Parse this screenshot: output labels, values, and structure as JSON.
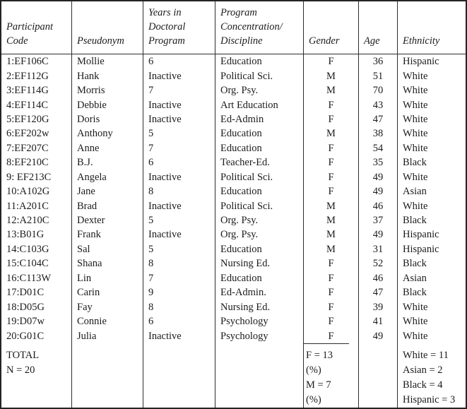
{
  "table": {
    "columns": [
      {
        "key": "participant-code",
        "label": "Participant\nCode"
      },
      {
        "key": "pseudonym",
        "label": "Pseudonym"
      },
      {
        "key": "years-in-doctoral-program",
        "label": "Years in\nDoctoral\nProgram"
      },
      {
        "key": "program-concentration",
        "label": "Program\nConcentration/\nDiscipline"
      },
      {
        "key": "gender",
        "label": "Gender"
      },
      {
        "key": "age",
        "label": "Age"
      },
      {
        "key": "ethnicity",
        "label": "Ethnicity"
      }
    ],
    "rows": [
      [
        "1:EF106C",
        "Mollie",
        "6",
        "Education",
        "F",
        "36",
        "Hispanic"
      ],
      [
        "2:EF112G",
        "Hank",
        "Inactive",
        "Political Sci.",
        "M",
        "51",
        "White"
      ],
      [
        "3:EF114G",
        "Morris",
        "7",
        "Org. Psy.",
        "M",
        "70",
        "White"
      ],
      [
        "4:EF114C",
        "Debbie",
        "Inactive",
        "Art Education",
        "F",
        "43",
        "White"
      ],
      [
        "5:EF120G",
        "Doris",
        "Inactive",
        "Ed-Admin",
        "F",
        "47",
        "White"
      ],
      [
        "6:EF202w",
        "Anthony",
        "5",
        "Education",
        "M",
        "38",
        "White"
      ],
      [
        "7:EF207C",
        "Anne",
        "7",
        "Education",
        "F",
        "54",
        "White"
      ],
      [
        "8:EF210C",
        "B.J.",
        "6",
        "Teacher-Ed.",
        "F",
        "35",
        "Black"
      ],
      [
        "9: EF213C",
        "Angela",
        "Inactive",
        "Political Sci.",
        "F",
        "49",
        "White"
      ],
      [
        "10:A102G",
        "Jane",
        "8",
        "Education",
        "F",
        "49",
        "Asian"
      ],
      [
        "11:A201C",
        "Brad",
        "Inactive",
        "Political Sci.",
        "M",
        "46",
        "White"
      ],
      [
        "12:A210C",
        "Dexter",
        "5",
        "Org. Psy.",
        "M",
        "37",
        "Black"
      ],
      [
        "13:B01G",
        "Frank",
        "Inactive",
        "Org. Psy.",
        "M",
        "49",
        "Hispanic"
      ],
      [
        "14:C103G",
        "Sal",
        "5",
        "Education",
        "M",
        "31",
        "Hispanic"
      ],
      [
        "15:C104C",
        "Shana",
        "8",
        "Nursing Ed.",
        "F",
        "52",
        "Black"
      ],
      [
        "16:C113W",
        "Lin",
        "7",
        "Education",
        "F",
        "46",
        "Asian"
      ],
      [
        "17:D01C",
        "Carin",
        "9",
        "Ed-Admin.",
        "F",
        "47",
        "Black"
      ],
      [
        "18:D05G",
        "Fay",
        "8",
        "Nursing Ed.",
        "F",
        "39",
        "White"
      ],
      [
        "19:D07w",
        "Connie",
        "6",
        "Psychology",
        "F",
        "41",
        "White"
      ],
      [
        "20:G01C",
        "Julia",
        "Inactive",
        "Psychology",
        "F",
        "49",
        "White"
      ]
    ],
    "summary": {
      "total_label": "TOTAL",
      "total_n": "N = 20",
      "gender": "F = 13\n(%)\nM = 7\n(%)",
      "ethnicity": "White = 11\nAsian = 2\nBlack = 4\nHispanic = 3"
    }
  },
  "colors": {
    "text": "#1b1b1b",
    "border": "#2d2d2d",
    "background": "#ffffff"
  }
}
